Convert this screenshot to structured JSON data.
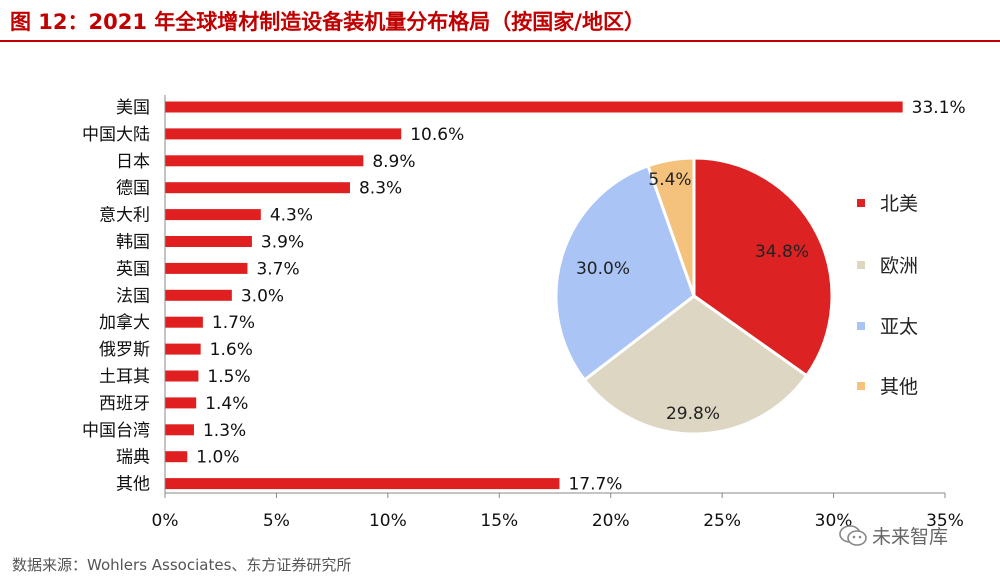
{
  "figure": {
    "title": "图 12：2021 年全球增材制造设备装机量分布格局（按国家/地区）",
    "source": "数据来源：Wohlers Associates、东方证券研究所",
    "watermark": "未来智库"
  },
  "colors": {
    "title": "#c00000",
    "bar": "#e02020",
    "na": "#dc2222",
    "eu": "#ddd6c3",
    "ap": "#a9c4f5",
    "other": "#f4c27c"
  },
  "chart_data": [
    {
      "type": "bar",
      "orientation": "horizontal",
      "categories": [
        "美国",
        "中国大陆",
        "日本",
        "德国",
        "意大利",
        "韩国",
        "英国",
        "法国",
        "加拿大",
        "俄罗斯",
        "土耳其",
        "西班牙",
        "中国台湾",
        "瑞典",
        "其他"
      ],
      "values": [
        33.1,
        10.6,
        8.9,
        8.3,
        4.3,
        3.9,
        3.7,
        3.0,
        1.7,
        1.6,
        1.5,
        1.4,
        1.3,
        1.0,
        17.7
      ],
      "data_labels": [
        "33.1%",
        "10.6%",
        "8.9%",
        "8.3%",
        "4.3%",
        "3.9%",
        "3.7%",
        "3.0%",
        "1.7%",
        "1.6%",
        "1.5%",
        "1.4%",
        "1.3%",
        "1.0%",
        "17.7%"
      ],
      "xlim": [
        0,
        35
      ],
      "x_ticks": [
        "0%",
        "5%",
        "10%",
        "15%",
        "20%",
        "25%",
        "30%",
        "35%"
      ],
      "grid": false
    },
    {
      "type": "pie",
      "categories": [
        "北美",
        "欧洲",
        "亚太",
        "其他"
      ],
      "values": [
        34.8,
        29.8,
        30.0,
        5.4
      ],
      "data_labels": [
        "34.8%",
        "29.8%",
        "30.0%",
        "5.4%"
      ],
      "start_angle": "12 o'clock",
      "direction": "clockwise",
      "legend": "right"
    }
  ]
}
